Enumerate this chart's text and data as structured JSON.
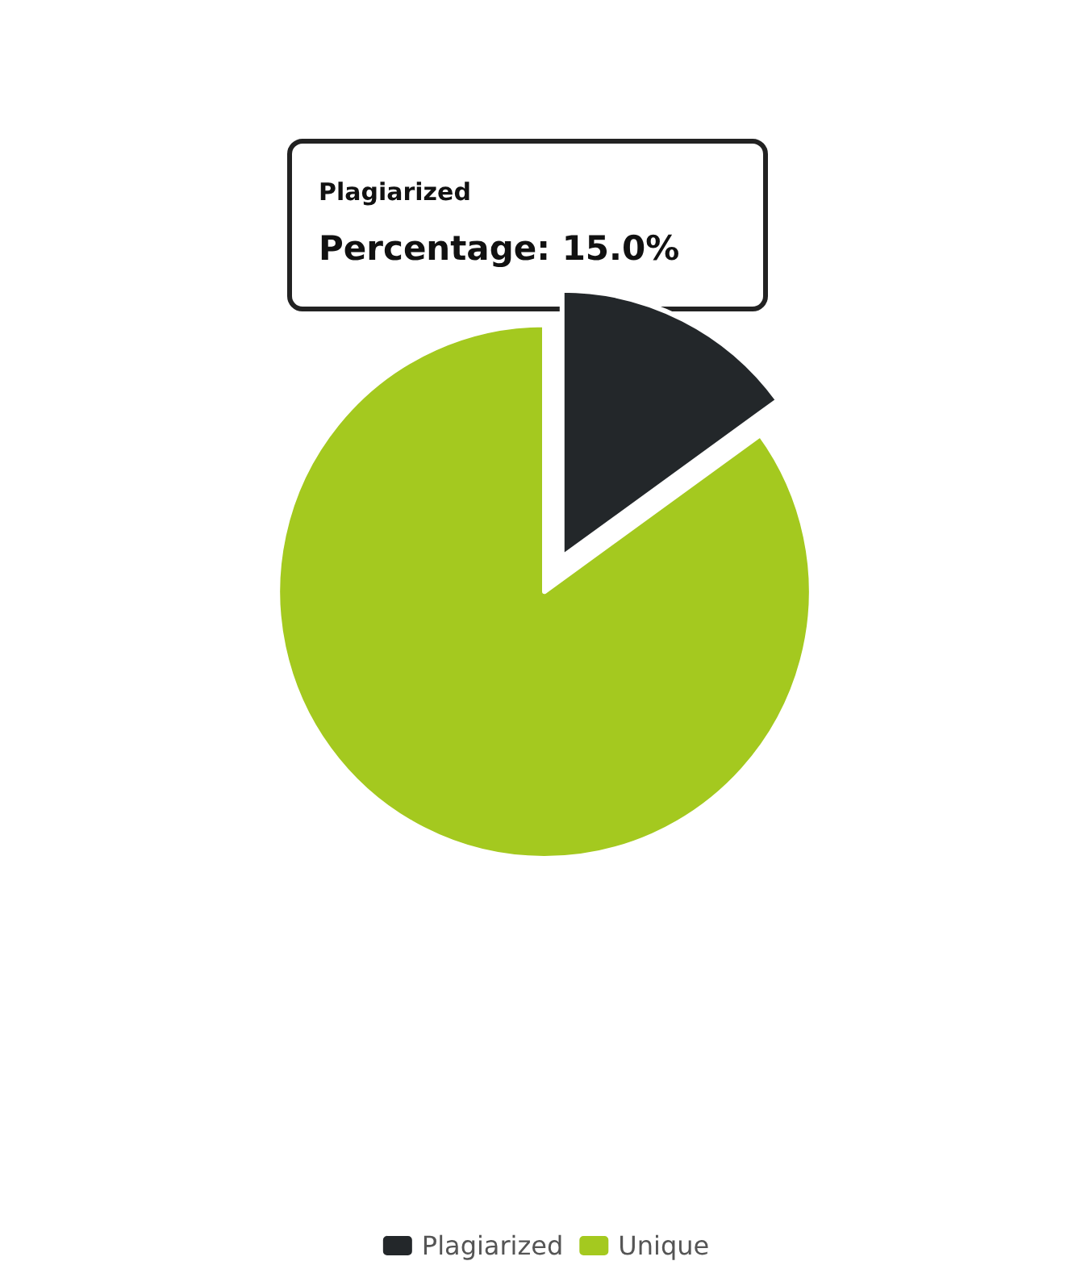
{
  "chart_data": {
    "type": "pie",
    "categories": [
      "Plagiarized",
      "Unique"
    ],
    "values": [
      15,
      85
    ],
    "colors": [
      "#23272a",
      "#a4c91f"
    ],
    "legend": "bottom",
    "annotations": [
      "Plagiarized",
      "Percentage: 15.0%"
    ]
  }
}
